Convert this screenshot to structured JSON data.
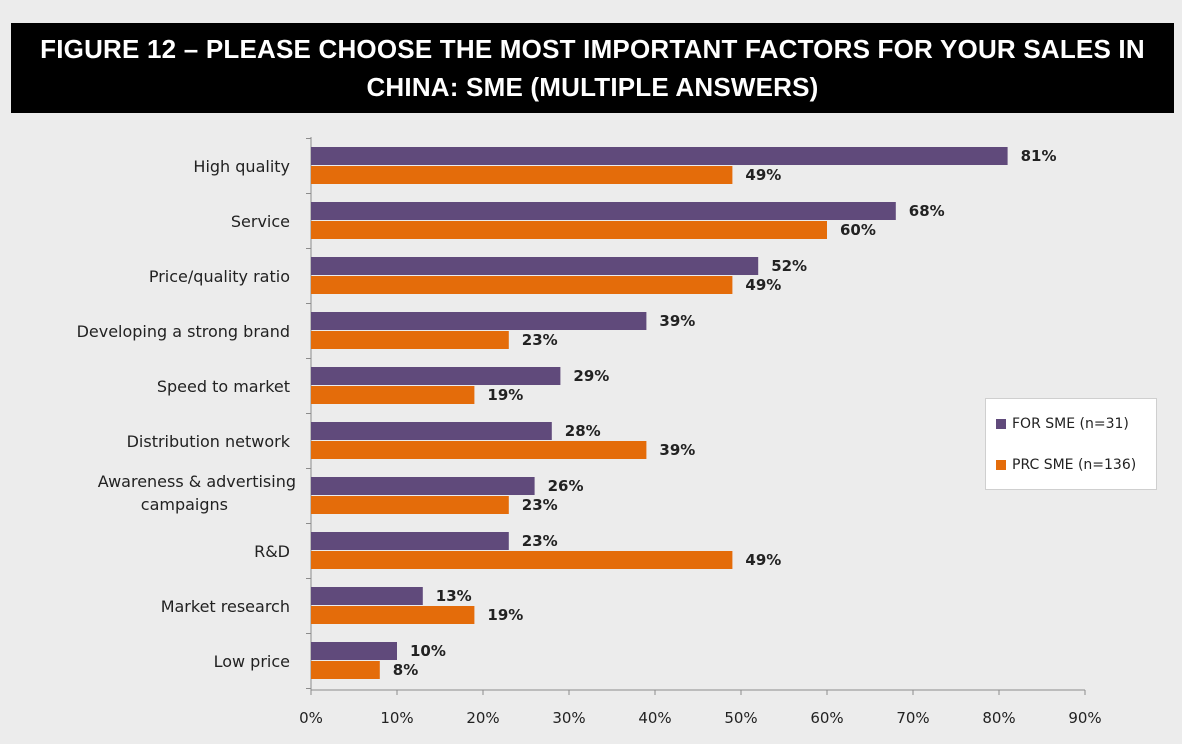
{
  "title": "FIGURE 12 – PLEASE CHOOSE THE MOST IMPORTANT FACTORS FOR YOUR SALES IN CHINA: SME (MULTIPLE ANSWERS)",
  "colors": {
    "series_for": "#604a7b",
    "series_prc": "#e46c0a",
    "background": "#ececec",
    "banner": "#000000"
  },
  "chart_data": {
    "type": "bar",
    "orientation": "horizontal",
    "categories": [
      "High quality",
      "Service",
      "Price/quality ratio",
      "Developing a strong brand",
      "Speed to market",
      "Distribution network",
      "Awareness & advertising campaigns",
      "R&D",
      "Market research",
      "Low price"
    ],
    "series": [
      {
        "name": "FOR SME (n=31)",
        "values": [
          81,
          68,
          52,
          39,
          29,
          28,
          26,
          23,
          13,
          10
        ]
      },
      {
        "name": "PRC SME (n=136)",
        "values": [
          49,
          60,
          49,
          23,
          19,
          39,
          23,
          49,
          19,
          8
        ]
      }
    ],
    "xlim": [
      0,
      90
    ],
    "xticks": [
      "0%",
      "10%",
      "20%",
      "30%",
      "40%",
      "50%",
      "60%",
      "70%",
      "80%",
      "90%"
    ],
    "value_suffix": "%",
    "grid": false,
    "legend_position": "right"
  }
}
